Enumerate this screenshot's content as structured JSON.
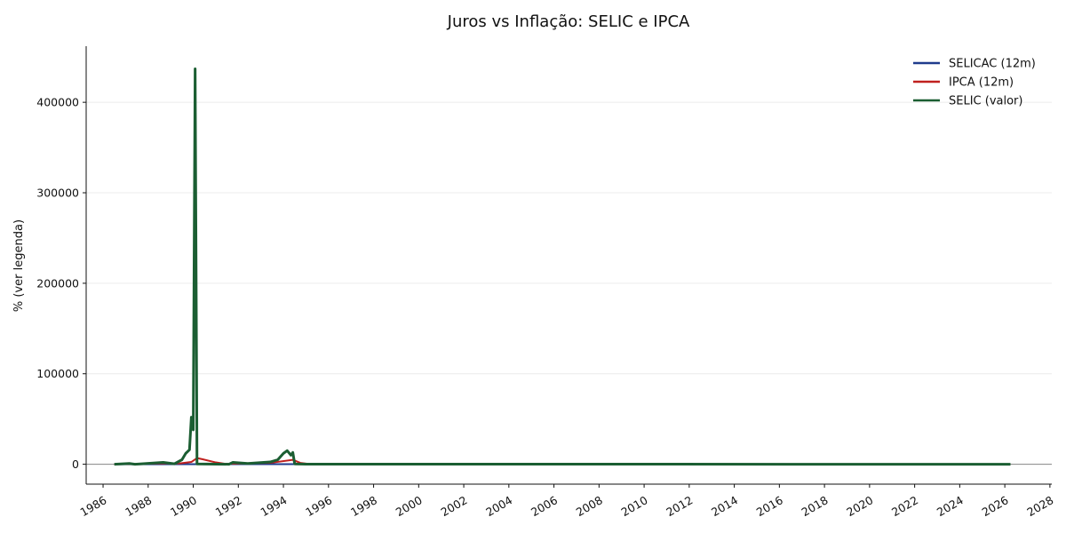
{
  "chart_data": {
    "type": "line",
    "title": "Juros vs Inflação: SELIC e IPCA",
    "xlabel": "",
    "ylabel": "% (ver legenda)",
    "x_range": [
      "1985-04",
      "2028-02"
    ],
    "ylim": [
      -22000,
      462000
    ],
    "y_ticks": [
      0,
      100000,
      200000,
      300000,
      400000
    ],
    "y_tick_labels": [
      "0",
      "100000",
      "200000",
      "300000",
      "400000"
    ],
    "x_ticks": [
      1986,
      1988,
      1990,
      1992,
      1994,
      1996,
      1998,
      2000,
      2002,
      2004,
      2006,
      2008,
      2010,
      2012,
      2014,
      2016,
      2018,
      2020,
      2022,
      2024,
      2026,
      2028
    ],
    "x_tick_labels": [
      "1986",
      "1988",
      "1990",
      "1992",
      "1994",
      "1996",
      "1998",
      "2000",
      "2002",
      "2004",
      "2006",
      "2008",
      "2010",
      "2012",
      "2014",
      "2016",
      "2018",
      "2020",
      "2022",
      "2024",
      "2026",
      "2028"
    ],
    "grid": "horizontal",
    "zero_line": true,
    "legend_position": "top-right",
    "series": [
      {
        "name": "SELICAC (12m)",
        "color": "#1f3b8c",
        "points": [
          {
            "x": "1986-07",
            "y": 0
          },
          {
            "x": "1995-01",
            "y": 150
          },
          {
            "x": "2000-01",
            "y": 25
          },
          {
            "x": "2010-01",
            "y": 10
          },
          {
            "x": "2020-01",
            "y": 4
          },
          {
            "x": "2026-04",
            "y": 14
          }
        ]
      },
      {
        "name": "IPCA (12m)",
        "color": "#c0201e",
        "points": [
          {
            "x": "1986-07",
            "y": 0
          },
          {
            "x": "1987-06",
            "y": 300
          },
          {
            "x": "1988-06",
            "y": 800
          },
          {
            "x": "1989-06",
            "y": 1000
          },
          {
            "x": "1989-12",
            "y": 2500
          },
          {
            "x": "1990-03",
            "y": 6800
          },
          {
            "x": "1990-06",
            "y": 5500
          },
          {
            "x": "1991-01",
            "y": 2000
          },
          {
            "x": "1991-06",
            "y": 500
          },
          {
            "x": "1992-06",
            "y": 1000
          },
          {
            "x": "1993-06",
            "y": 1500
          },
          {
            "x": "1994-06",
            "y": 4900
          },
          {
            "x": "1994-10",
            "y": 1500
          },
          {
            "x": "1995-03",
            "y": 200
          },
          {
            "x": "1996-01",
            "y": 20
          },
          {
            "x": "2026-04",
            "y": 5
          }
        ]
      },
      {
        "name": "SELIC (valor)",
        "color": "#1b5e32",
        "points": [
          {
            "x": "1986-07",
            "y": 0
          },
          {
            "x": "1987-03",
            "y": 800
          },
          {
            "x": "1987-06",
            "y": 0
          },
          {
            "x": "1988-09",
            "y": 2000
          },
          {
            "x": "1989-03",
            "y": 500
          },
          {
            "x": "1989-07",
            "y": 5000
          },
          {
            "x": "1989-09",
            "y": 12000
          },
          {
            "x": "1989-11",
            "y": 16000
          },
          {
            "x": "1989-12",
            "y": 52000
          },
          {
            "x": "1990-01",
            "y": 38000
          },
          {
            "x": "1990-02",
            "y": 437000
          },
          {
            "x": "1990-03",
            "y": 300
          },
          {
            "x": "1991-08",
            "y": 0
          },
          {
            "x": "1991-10",
            "y": 2000
          },
          {
            "x": "1992-06",
            "y": 800
          },
          {
            "x": "1993-06",
            "y": 2500
          },
          {
            "x": "1993-10",
            "y": 5000
          },
          {
            "x": "1994-01",
            "y": 12000
          },
          {
            "x": "1994-03",
            "y": 15000
          },
          {
            "x": "1994-05",
            "y": 10000
          },
          {
            "x": "1994-06",
            "y": 13000
          },
          {
            "x": "1994-07",
            "y": 300
          },
          {
            "x": "1995-01",
            "y": 50
          },
          {
            "x": "2026-04",
            "y": 14
          }
        ]
      }
    ]
  }
}
